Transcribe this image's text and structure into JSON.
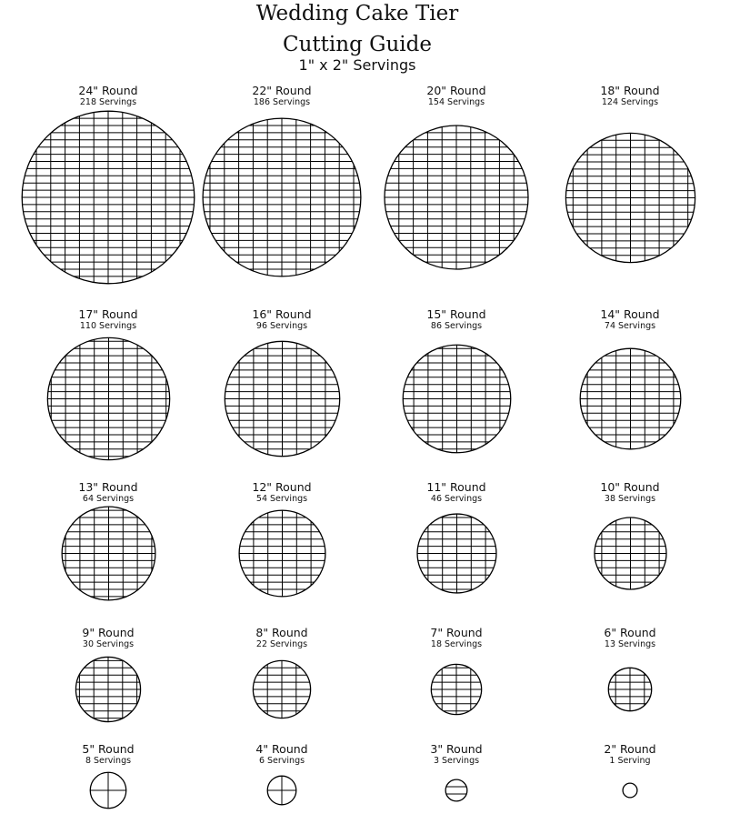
{
  "title": "Wedding Cake Tier",
  "subtitle": "Cutting Guide",
  "serving_size": "1\" x 2\" Servings",
  "tiers": [
    {
      "name": "24\" Round",
      "servings": "218 Servings",
      "diameter_in": 24
    },
    {
      "name": "22\" Round",
      "servings": "186 Servings",
      "diameter_in": 22
    },
    {
      "name": "20\" Round",
      "servings": "154 Servings",
      "diameter_in": 20
    },
    {
      "name": "18\" Round",
      "servings": "124 Servings",
      "diameter_in": 18
    },
    {
      "name": "17\" Round",
      "servings": "110 Servings",
      "diameter_in": 17
    },
    {
      "name": "16\" Round",
      "servings": "96 Servings",
      "diameter_in": 16
    },
    {
      "name": "15\" Round",
      "servings": "86 Servings",
      "diameter_in": 15
    },
    {
      "name": "14\" Round",
      "servings": "74 Servings",
      "diameter_in": 14
    },
    {
      "name": "13\" Round",
      "servings": "64 Servings",
      "diameter_in": 13
    },
    {
      "name": "12\" Round",
      "servings": "54 Servings",
      "diameter_in": 12
    },
    {
      "name": "11\" Round",
      "servings": "46 Servings",
      "diameter_in": 11
    },
    {
      "name": "10\" Round",
      "servings": "38 Servings",
      "diameter_in": 10
    },
    {
      "name": "9\" Round",
      "servings": "30 Servings",
      "diameter_in": 9
    },
    {
      "name": "8\" Round",
      "servings": "22 Servings",
      "diameter_in": 8
    },
    {
      "name": "7\" Round",
      "servings": "18 Servings",
      "diameter_in": 7
    },
    {
      "name": "6\" Round",
      "servings": "13 Servings",
      "diameter_in": 6
    },
    {
      "name": "5\" Round",
      "servings": "8 Servings",
      "diameter_in": 5
    },
    {
      "name": "4\" Round",
      "servings": "6 Servings",
      "diameter_in": 4
    },
    {
      "name": "3\" Round",
      "servings": "3 Servings",
      "diameter_in": 3
    },
    {
      "name": "2\" Round",
      "servings": "1 Serving",
      "diameter_in": 2
    }
  ]
}
